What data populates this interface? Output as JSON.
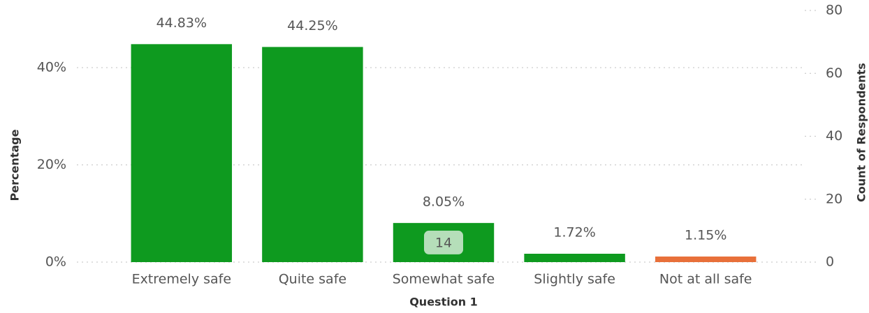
{
  "chart_data": {
    "type": "bar",
    "categories": [
      "Extremely safe",
      "Quite safe",
      "Somewhat safe",
      "Slightly safe",
      "Not at all safe"
    ],
    "series": [
      {
        "name": "Percentage",
        "values": [
          44.83,
          44.25,
          8.05,
          1.72,
          1.15
        ],
        "value_labels": [
          "44.83%",
          "44.25%",
          "8.05%",
          "1.72%",
          "1.15%"
        ],
        "colors": [
          "#0e9a1f",
          "#0e9a1f",
          "#0e9a1f",
          "#0e9a1f",
          "#e8703a"
        ]
      },
      {
        "name": "Count of Respondents",
        "axis": "y2",
        "values": [
          null,
          null,
          14,
          null,
          null
        ]
      }
    ],
    "x_label": "Question 1",
    "y_label": "Percentage",
    "y2_label": "Count of Respondents",
    "ylim": [
      0,
      51.76
    ],
    "yticks": [
      {
        "value": 0,
        "label": "0%"
      },
      {
        "value": 20,
        "label": "20%"
      },
      {
        "value": 40,
        "label": "40%"
      }
    ],
    "y2lim": [
      0,
      80
    ],
    "y2ticks": [
      0,
      20,
      40,
      60,
      80
    ],
    "grid": true
  }
}
